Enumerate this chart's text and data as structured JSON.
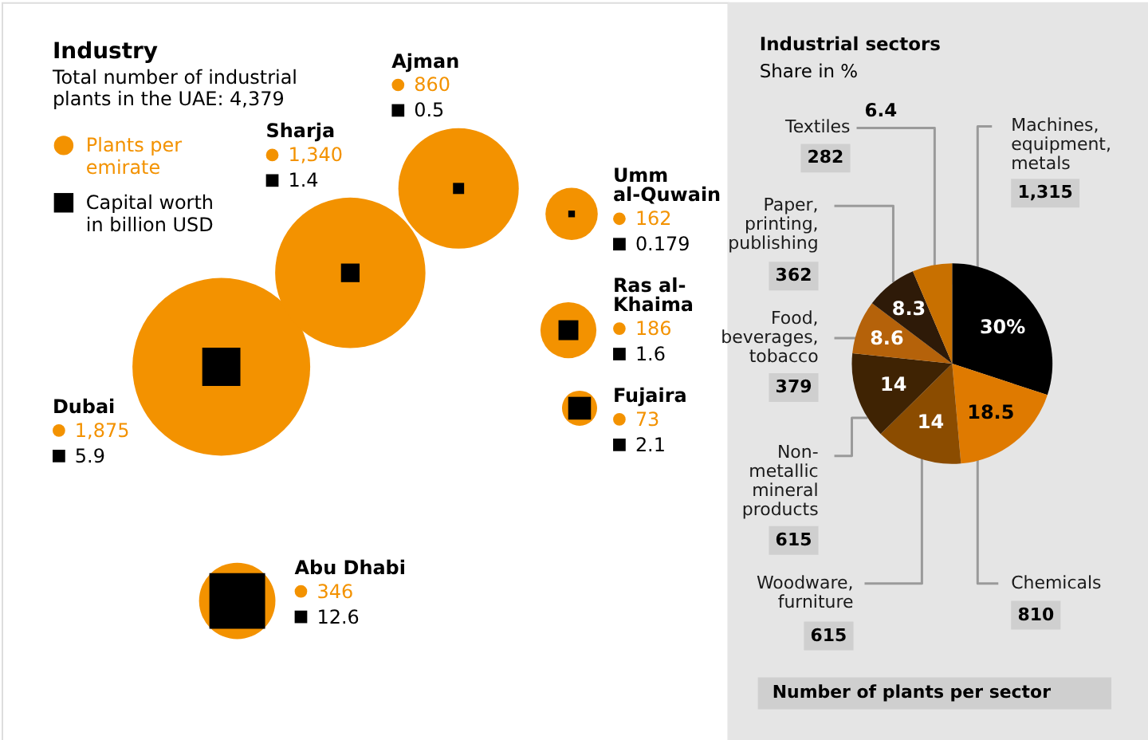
{
  "chart_data": [
    {
      "type": "other",
      "title": "Industry",
      "subtitle": "Total number of industrial plants in the UAE: 4,379",
      "categories": [
        "Dubai",
        "Sharja",
        "Ajman",
        "Umm al-Quwain",
        "Ras al-Khaima",
        "Fujaira",
        "Abu Dhabi"
      ],
      "series": [
        {
          "name": "Plants per emirate",
          "color": "#f39200",
          "values": [
            1875,
            1340,
            860,
            162,
            186,
            73,
            346
          ],
          "value_labels": [
            "1,875",
            "1,340",
            "860",
            "162",
            "186",
            "73",
            "346"
          ]
        },
        {
          "name": "Capital worth in billion USD",
          "color": "#000000",
          "values": [
            5.9,
            1.4,
            0.5,
            0.179,
            1.6,
            2.1,
            12.6
          ],
          "value_labels": [
            "5.9",
            "1.4",
            "0.5",
            "0.179",
            "1.6",
            "2.1",
            "12.6"
          ]
        }
      ],
      "legend": "top left"
    },
    {
      "type": "pie",
      "title": "Industrial sectors",
      "subtitle": "Share in %",
      "categories": [
        "Machines, equipment, metals",
        "Chemicals",
        "Woodware, furniture",
        "Non-metallic mineral products",
        "Food, beverages, tobacco",
        "Paper, printing, publishing",
        "Textiles"
      ],
      "values": [
        30,
        18.5,
        14,
        14,
        8.6,
        8.3,
        6.4
      ],
      "colors": [
        "#000000",
        "#df7a00",
        "#8b4c00",
        "#3f2303",
        "#b5620a",
        "#2e1a08",
        "#c87000"
      ],
      "value_labels": [
        "30%",
        "18.5",
        "14",
        "14",
        "8.6",
        "8.3",
        "6.4"
      ],
      "annotations": [
        "1,315",
        "810",
        "615",
        "615",
        "379",
        "362",
        "282",
        "Number of plants per sector"
      ]
    }
  ]
}
